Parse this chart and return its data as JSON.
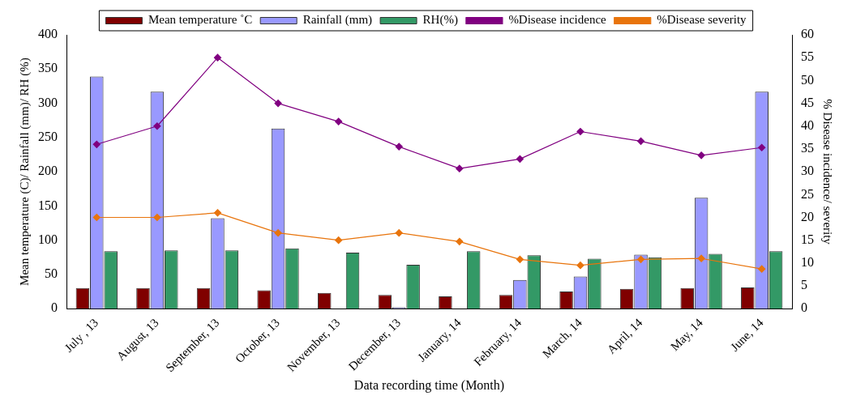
{
  "chart_data": {
    "type": "bar",
    "xlabel": "Data recording time (Month)",
    "ylabel": "Mean temperature (C)/ Rainfall (mm)/ RH (%)",
    "y2label": "% Disease incidence/ severity",
    "categories": [
      "July , 13",
      "August, 13",
      "September, 13",
      "October, 13",
      "November, 13",
      "December, 13",
      "January, 14",
      "February, 14",
      "March, 14",
      "April, 14",
      "May, 14",
      "June, 14"
    ],
    "series": [
      {
        "name": "Mean temperature ˚C",
        "color": "#800000",
        "values": [
          30,
          30,
          30,
          27,
          23,
          20,
          18,
          20,
          25,
          29,
          30,
          31
        ]
      },
      {
        "name": "Rainfall (mm)",
        "color": "#9999ff",
        "values": [
          339,
          317,
          132,
          263,
          0,
          2,
          0,
          42,
          47,
          79,
          162,
          317
        ]
      },
      {
        "name": "RH(%)",
        "color": "#339966",
        "values": [
          84,
          85,
          85,
          88,
          82,
          64,
          84,
          78,
          73,
          75,
          80,
          84
        ]
      },
      {
        "name": "%Disease incidence",
        "type": "line",
        "axis": "y2",
        "color": "#800080",
        "values": [
          36,
          40,
          55,
          45,
          41,
          35.5,
          30.7,
          32.8,
          38.8,
          36.7,
          33.6,
          35.3
        ]
      },
      {
        "name": "%Disease severity",
        "type": "line",
        "axis": "y2",
        "color": "#e8740c",
        "values": [
          20,
          20,
          21,
          16.6,
          15,
          16.6,
          14.7,
          10.8,
          9.5,
          10.8,
          11,
          8.7
        ]
      }
    ],
    "ylim": [
      0,
      400
    ],
    "yticks": [
      0,
      50,
      100,
      150,
      200,
      250,
      300,
      350,
      400
    ],
    "y2lim": [
      0,
      60
    ],
    "y2ticks": [
      0,
      5,
      10,
      15,
      20,
      25,
      30,
      35,
      40,
      45,
      50,
      55,
      60
    ],
    "grid": false,
    "legend": "top",
    "marker": "diamond",
    "line_style": "solid"
  }
}
